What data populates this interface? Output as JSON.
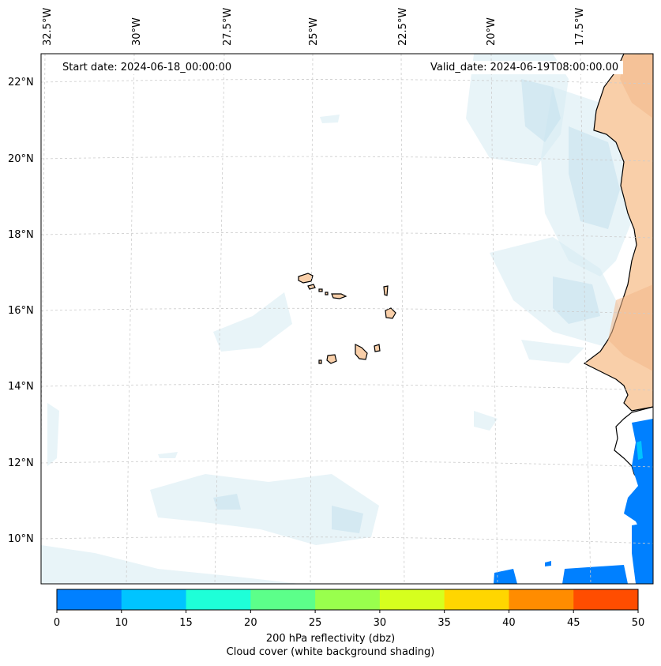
{
  "map": {
    "start_date_text": "Start date: 2024-06-18_00:00:00",
    "valid_date_text": "Valid_date: 2024-06-19T08:00:00.00",
    "lon_labels": [
      "32.5°W",
      "30°W",
      "27.5°W",
      "25°W",
      "22.5°W",
      "20°W",
      "17.5°W"
    ],
    "lat_labels": [
      "22°N",
      "20°N",
      "18°N",
      "16°N",
      "14°N",
      "12°N",
      "10°N"
    ]
  },
  "colorbar": {
    "ticks": [
      "0",
      "10",
      "15",
      "20",
      "25",
      "30",
      "35",
      "40",
      "45",
      "50"
    ],
    "colors": [
      "#0080ff",
      "#00c4ff",
      "#1effd8",
      "#5cff8a",
      "#99ff4d",
      "#d6ff1e",
      "#ffd600",
      "#ff8c00",
      "#ff4d00"
    ],
    "label_line1": "200 hPa reflectivity (dbz)",
    "label_line2": "Cloud cover (white background shading)"
  },
  "colors": {
    "land_fill": "#f9cfa9",
    "cloud_fill": "#d6ebf2",
    "reflectivity_low": "#0080ff",
    "coastline": "#000000",
    "gridline": "#cccccc"
  }
}
